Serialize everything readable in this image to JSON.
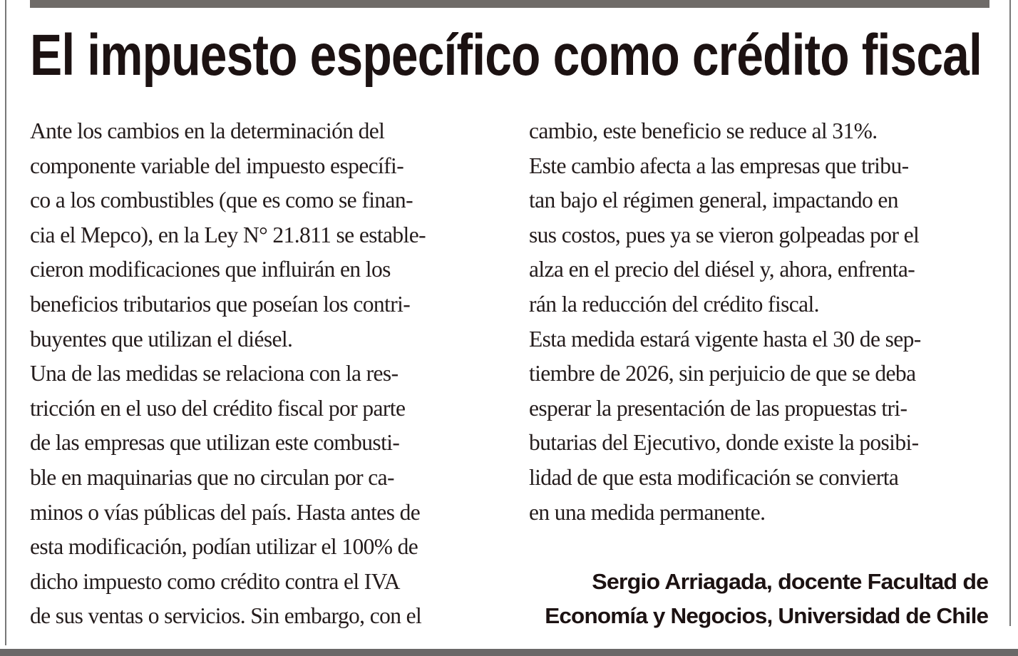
{
  "article": {
    "title": "El impuesto específico como crédito fiscal",
    "left_column": [
      "Ante los cambios en la determinación del",
      "componente variable del impuesto específi-",
      "co a los combustibles (que es como se finan-",
      "cia el Mepco), en la Ley N° 21.811 se estable-",
      "cieron modificaciones que influirán en los",
      "beneficios tributarios que poseían los contri-",
      "buyentes que utilizan el diésel.",
      "Una de las medidas se relaciona con la res-",
      "tricción en el uso del crédito fiscal por parte",
      "de las empresas que utilizan este combusti-",
      "ble en maquinarias que no circulan por ca-",
      "minos o vías públicas del país. Hasta antes de",
      "esta modificación, podían utilizar el 100% de",
      "dicho impuesto como crédito contra el IVA",
      "de sus ventas o servicios. Sin embargo, con el"
    ],
    "right_column": [
      "cambio, este beneficio se reduce al 31%.",
      "Este cambio afecta a las empresas que tribu-",
      "tan bajo el régimen general, impactando en",
      "sus costos, pues ya se vieron golpeadas por el",
      "alza en el precio del diésel y, ahora, enfrenta-",
      "rán la reducción del crédito fiscal.",
      "Esta medida estará vigente hasta el 30 de sep-",
      "tiembre de 2026, sin perjuicio de que se deba",
      "esperar la presentación de las propuestas tri-",
      "butarias del Ejecutivo, donde existe la posibi-",
      "lidad de que esta modificación se convierta",
      "en una medida permanente."
    ],
    "author": [
      "Sergio Arriagada, docente  Facultad de",
      "Economía y Negocios, Universidad de Chile"
    ]
  }
}
